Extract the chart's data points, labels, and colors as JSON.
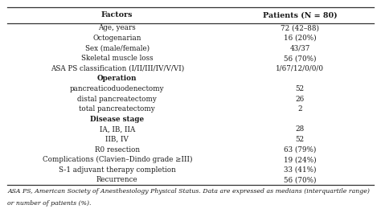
{
  "col1_header": "Factors",
  "col2_header": "Patients (N = 80)",
  "rows": [
    [
      "Age, years",
      "72 (42–88)"
    ],
    [
      "Octogenarian",
      "16 (20%)"
    ],
    [
      "Sex (male/female)",
      "43/37"
    ],
    [
      "Skeletal muscle loss",
      "56 (70%)"
    ],
    [
      "ASA PS classification (I/II/III/IV/V/VI)",
      "1/67/12/0/0/0"
    ],
    [
      "Operation",
      ""
    ],
    [
      "pancreaticoduodenectomy",
      "52"
    ],
    [
      "distal pancreatectomy",
      "26"
    ],
    [
      "total pancreatectomy",
      "2"
    ],
    [
      "Disease stage",
      ""
    ],
    [
      "IA, IB, IIA",
      "28"
    ],
    [
      "IIB, IV",
      "52"
    ],
    [
      "R0 resection",
      "63 (79%)"
    ],
    [
      "Complications (Clavien–Dindo grade ≥III)",
      "19 (24%)"
    ],
    [
      "S-1 adjuvant therapy completion",
      "33 (41%)"
    ],
    [
      "Recurrence",
      "56 (70%)"
    ]
  ],
  "footnote1": "ASA PS, American Society of Anesthesiology Physical Status. Data are expressed as medians (interquartile range)",
  "footnote2": "or number of patients (%).",
  "bg_color": "#ffffff",
  "border_color": "#333333",
  "text_color": "#1a1a1a",
  "font_size": 6.3,
  "header_font_size": 6.8,
  "footnote_font_size": 5.6,
  "col_split": 0.595,
  "fig_width": 4.74,
  "fig_height": 2.6,
  "dpi": 100
}
